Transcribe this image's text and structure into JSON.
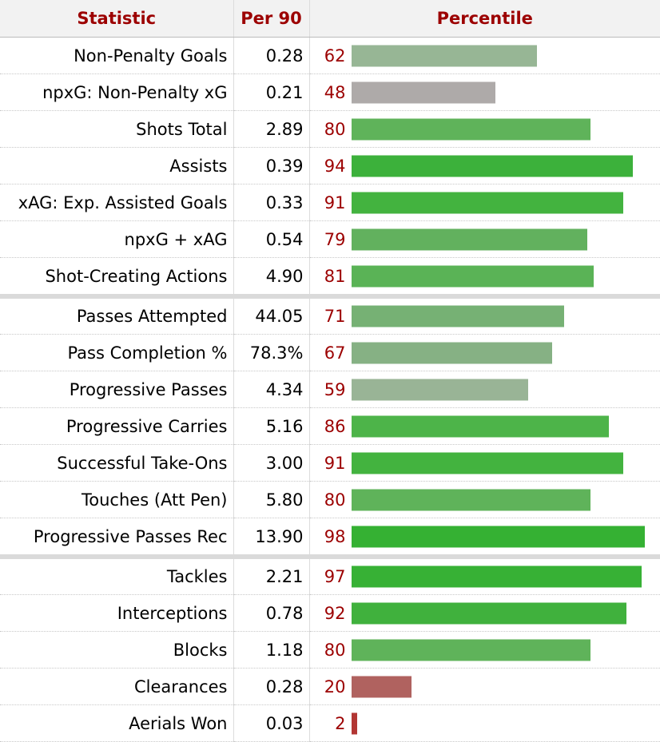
{
  "headers": {
    "statistic": "Statistic",
    "per90": "Per 90",
    "percentile": "Percentile"
  },
  "groups": [
    [
      {
        "stat": "Non-Penalty Goals",
        "per90": "0.28",
        "percentile": 62,
        "color": "#97b695"
      },
      {
        "stat": "npxG: Non-Penalty xG",
        "per90": "0.21",
        "percentile": 48,
        "color": "#aeaaa9"
      },
      {
        "stat": "Shots Total",
        "per90": "2.89",
        "percentile": 80,
        "color": "#5fb35a"
      },
      {
        "stat": "Assists",
        "per90": "0.39",
        "percentile": 94,
        "color": "#3cb13b"
      },
      {
        "stat": "xAG: Exp. Assisted Goals",
        "per90": "0.33",
        "percentile": 91,
        "color": "#43b33f"
      },
      {
        "stat": "npxG + xAG",
        "per90": "0.54",
        "percentile": 79,
        "color": "#62b15e"
      },
      {
        "stat": "Shot-Creating Actions",
        "per90": "4.90",
        "percentile": 81,
        "color": "#5ab356"
      }
    ],
    [
      {
        "stat": "Passes Attempted",
        "per90": "44.05",
        "percentile": 71,
        "color": "#76b174"
      },
      {
        "stat": "Pass Completion %",
        "per90": "78.3%",
        "percentile": 67,
        "color": "#86b184"
      },
      {
        "stat": "Progressive Passes",
        "per90": "4.34",
        "percentile": 59,
        "color": "#99b496"
      },
      {
        "stat": "Progressive Carries",
        "per90": "5.16",
        "percentile": 86,
        "color": "#4db449"
      },
      {
        "stat": "Successful Take-Ons",
        "per90": "3.00",
        "percentile": 91,
        "color": "#43b33f"
      },
      {
        "stat": "Touches (Att Pen)",
        "per90": "5.80",
        "percentile": 80,
        "color": "#5fb35a"
      },
      {
        "stat": "Progressive Passes Rec",
        "per90": "13.90",
        "percentile": 98,
        "color": "#35b133"
      }
    ],
    [
      {
        "stat": "Tackles",
        "per90": "2.21",
        "percentile": 97,
        "color": "#37b135"
      },
      {
        "stat": "Interceptions",
        "per90": "0.78",
        "percentile": 92,
        "color": "#40b13d"
      },
      {
        "stat": "Blocks",
        "per90": "1.18",
        "percentile": 80,
        "color": "#5fb35a"
      },
      {
        "stat": "Clearances",
        "per90": "0.28",
        "percentile": 20,
        "color": "#b0625f"
      },
      {
        "stat": "Aerials Won",
        "per90": "0.03",
        "percentile": 2,
        "color": "#b23633"
      }
    ]
  ]
}
